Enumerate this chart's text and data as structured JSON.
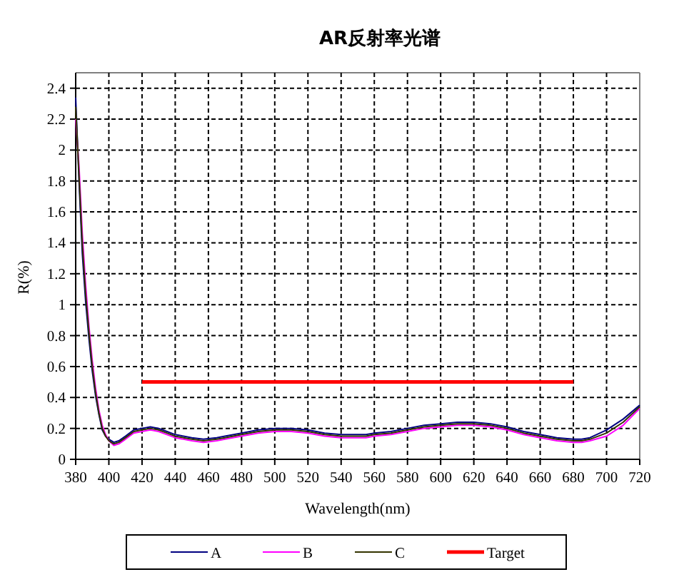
{
  "chart_data": {
    "type": "line",
    "title": "AR反射率光谱",
    "xlabel": "Wavelength(nm)",
    "ylabel": "R(%)",
    "x": [
      380,
      382,
      384,
      386,
      388,
      390,
      392,
      394,
      396,
      398,
      400,
      403,
      406,
      410,
      415,
      420,
      425,
      430,
      435,
      440,
      445,
      450,
      457,
      465,
      470,
      480,
      490,
      500,
      510,
      520,
      530,
      540,
      547,
      555,
      560,
      570,
      580,
      590,
      600,
      610,
      615,
      620,
      630,
      640,
      650,
      660,
      670,
      680,
      685,
      690,
      700,
      710,
      720
    ],
    "series": [
      {
        "name": "A",
        "color": "#000080",
        "values": [
          2.34,
          1.8,
          1.33,
          1.02,
          0.78,
          0.57,
          0.41,
          0.29,
          0.19,
          0.15,
          0.13,
          0.11,
          0.12,
          0.15,
          0.19,
          0.2,
          0.21,
          0.2,
          0.18,
          0.16,
          0.15,
          0.14,
          0.13,
          0.14,
          0.15,
          0.17,
          0.19,
          0.2,
          0.2,
          0.19,
          0.17,
          0.16,
          0.16,
          0.16,
          0.17,
          0.18,
          0.2,
          0.22,
          0.23,
          0.24,
          0.24,
          0.24,
          0.23,
          0.21,
          0.18,
          0.16,
          0.14,
          0.13,
          0.13,
          0.14,
          0.19,
          0.26,
          0.35
        ]
      },
      {
        "name": "B",
        "color": "#ff00ff",
        "values": [
          2.2,
          1.9,
          1.46,
          1.13,
          0.86,
          0.64,
          0.46,
          0.32,
          0.22,
          0.16,
          0.12,
          0.09,
          0.1,
          0.13,
          0.17,
          0.18,
          0.19,
          0.18,
          0.16,
          0.14,
          0.13,
          0.12,
          0.11,
          0.12,
          0.13,
          0.15,
          0.17,
          0.18,
          0.18,
          0.17,
          0.15,
          0.14,
          0.14,
          0.14,
          0.15,
          0.16,
          0.18,
          0.2,
          0.21,
          0.22,
          0.22,
          0.22,
          0.21,
          0.19,
          0.16,
          0.14,
          0.12,
          0.11,
          0.11,
          0.12,
          0.15,
          0.22,
          0.33
        ]
      },
      {
        "name": "C",
        "color": "#333300",
        "values": [
          2.28,
          1.84,
          1.39,
          1.07,
          0.82,
          0.6,
          0.43,
          0.3,
          0.2,
          0.15,
          0.12,
          0.1,
          0.11,
          0.14,
          0.18,
          0.19,
          0.2,
          0.19,
          0.17,
          0.15,
          0.14,
          0.13,
          0.12,
          0.13,
          0.14,
          0.16,
          0.18,
          0.19,
          0.19,
          0.18,
          0.16,
          0.15,
          0.15,
          0.15,
          0.16,
          0.17,
          0.19,
          0.21,
          0.22,
          0.23,
          0.23,
          0.23,
          0.22,
          0.2,
          0.17,
          0.15,
          0.13,
          0.12,
          0.12,
          0.13,
          0.17,
          0.24,
          0.34
        ]
      },
      {
        "name": "Target",
        "color": "#ff0000",
        "x": [
          420,
          680
        ],
        "values": [
          0.5,
          0.5
        ]
      }
    ],
    "xlim": [
      380,
      720
    ],
    "xticks": [
      380,
      400,
      420,
      440,
      460,
      480,
      500,
      520,
      540,
      560,
      580,
      600,
      620,
      640,
      660,
      680,
      700,
      720
    ],
    "ylim": [
      0,
      2.5
    ],
    "yticks": [
      0,
      0.2,
      0.4,
      0.6,
      0.8,
      1,
      1.2,
      1.4,
      1.6,
      1.8,
      2,
      2.2,
      2.4
    ],
    "grid": true,
    "legend": "bottom"
  }
}
